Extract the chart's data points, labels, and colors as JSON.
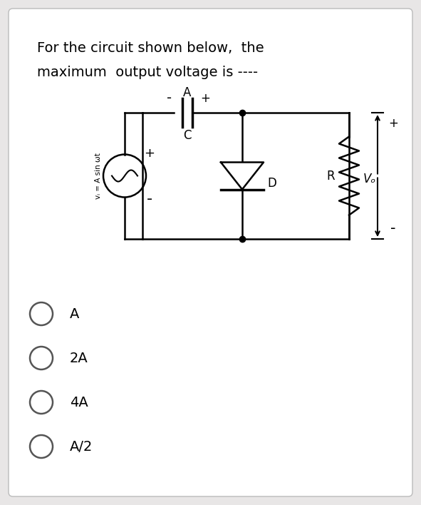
{
  "background_color": "#e8e6e6",
  "card_color": "#ffffff",
  "title_line1": "For the circuit shown below,  the",
  "title_line2": "maximum  output voltage is ----",
  "title_fontsize": 13.5,
  "options": [
    "A",
    "2A",
    "4A",
    "A/2"
  ],
  "options_fontsize": 14,
  "circuit": {
    "source_label": "vᵢ = A sin ωt",
    "cap_label_top": "A",
    "cap_label_bot": "C",
    "diode_label": "D",
    "resistor_label": "R",
    "output_label": "Vₒ"
  }
}
